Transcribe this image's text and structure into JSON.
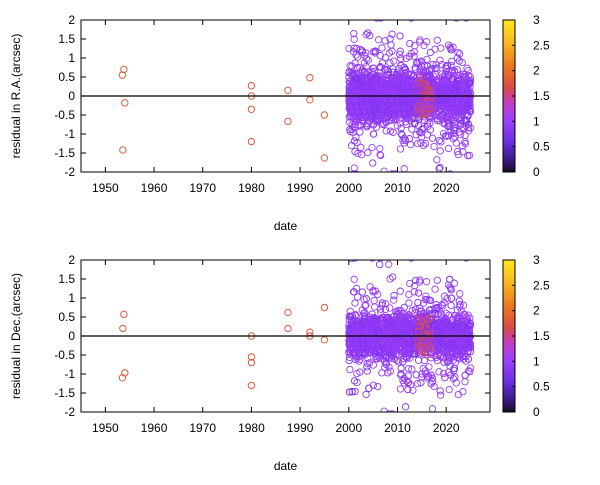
{
  "chart_data": [
    {
      "type": "scatter",
      "xlabel": "date",
      "ylabel": "residual in R.A.(arcsec)",
      "xlim": [
        1945,
        2029
      ],
      "ylim": [
        -2,
        2
      ],
      "x_ticks": [
        1950,
        1960,
        1970,
        1980,
        1990,
        2000,
        2010,
        2020
      ],
      "y_ticks": [
        -2,
        -1.5,
        -1,
        -0.5,
        0,
        0.5,
        1,
        1.5,
        2
      ],
      "y_tick_labels": [
        "-2",
        "-1.5",
        "-1",
        "-0.5",
        "0",
        "0.5",
        "1",
        "1.5",
        "2"
      ],
      "colorbar": {
        "range": [
          0,
          3
        ],
        "ticks": [
          "0",
          "0.5",
          "1",
          "1.5",
          "2",
          "2.5",
          "3"
        ]
      },
      "zero_line": true,
      "sparse_points": [
        {
          "x": 1953.8,
          "y": 0.7,
          "c": 1.8
        },
        {
          "x": 1953.5,
          "y": 0.55,
          "c": 1.8
        },
        {
          "x": 1954.0,
          "y": -0.18,
          "c": 1.8
        },
        {
          "x": 1953.6,
          "y": -1.42,
          "c": 1.8
        },
        {
          "x": 1980.0,
          "y": 0.27,
          "c": 1.8
        },
        {
          "x": 1980.0,
          "y": 0.0,
          "c": 1.8
        },
        {
          "x": 1980.0,
          "y": -0.35,
          "c": 1.8
        },
        {
          "x": 1980.0,
          "y": -1.2,
          "c": 1.8
        },
        {
          "x": 1987.5,
          "y": 0.15,
          "c": 1.8
        },
        {
          "x": 1987.5,
          "y": -0.67,
          "c": 1.8
        },
        {
          "x": 1992.0,
          "y": 0.48,
          "c": 1.8
        },
        {
          "x": 1992.0,
          "y": -0.1,
          "c": 1.8
        },
        {
          "x": 1995.0,
          "y": -0.5,
          "c": 1.8
        },
        {
          "x": 1995.0,
          "y": -1.63,
          "c": 1.8
        }
      ],
      "dense_region": {
        "x_range": [
          2000,
          2025
        ],
        "y_core_spread": 0.55,
        "outlier_spread": 1.9,
        "color_value": 0.9,
        "warm_x_range": [
          2014,
          2017
        ],
        "warm_color_value": 1.6,
        "description_count": 2200
      }
    },
    {
      "type": "scatter",
      "xlabel": "date",
      "ylabel": "residual in Dec.(arcsec)",
      "xlim": [
        1945,
        2029
      ],
      "ylim": [
        -2,
        2
      ],
      "x_ticks": [
        1950,
        1960,
        1970,
        1980,
        1990,
        2000,
        2010,
        2020
      ],
      "y_ticks": [
        -2,
        -1.5,
        -1,
        -0.5,
        0,
        0.5,
        1,
        1.5,
        2
      ],
      "y_tick_labels": [
        "-2",
        "-1.5",
        "-1",
        "-0.5",
        "0",
        "0.5",
        "1",
        "1.5",
        "2"
      ],
      "colorbar": {
        "range": [
          0,
          3
        ],
        "ticks": [
          "0",
          "0.5",
          "1",
          "1.5",
          "2",
          "2.5",
          "3"
        ]
      },
      "zero_line": true,
      "sparse_points": [
        {
          "x": 1953.8,
          "y": 0.57,
          "c": 1.8
        },
        {
          "x": 1953.6,
          "y": 0.2,
          "c": 1.8
        },
        {
          "x": 1954.0,
          "y": -0.97,
          "c": 1.8
        },
        {
          "x": 1953.5,
          "y": -1.1,
          "c": 1.8
        },
        {
          "x": 1980.0,
          "y": 0.0,
          "c": 1.8
        },
        {
          "x": 1980.0,
          "y": -0.55,
          "c": 1.8
        },
        {
          "x": 1980.0,
          "y": -0.7,
          "c": 1.8
        },
        {
          "x": 1980.0,
          "y": -1.3,
          "c": 1.8
        },
        {
          "x": 1987.5,
          "y": 0.62,
          "c": 1.8
        },
        {
          "x": 1987.5,
          "y": 0.2,
          "c": 1.8
        },
        {
          "x": 1992.0,
          "y": 0.1,
          "c": 1.8
        },
        {
          "x": 1992.0,
          "y": 0.0,
          "c": 1.8
        },
        {
          "x": 1995.0,
          "y": 0.75,
          "c": 1.8
        },
        {
          "x": 1995.0,
          "y": -0.1,
          "c": 1.8
        }
      ],
      "dense_region": {
        "x_range": [
          2000,
          2025
        ],
        "y_core_spread": 0.45,
        "outlier_spread": 1.9,
        "color_value": 0.9,
        "warm_x_range": [
          2014,
          2017
        ],
        "warm_color_value": 1.6,
        "description_count": 2200
      }
    }
  ]
}
